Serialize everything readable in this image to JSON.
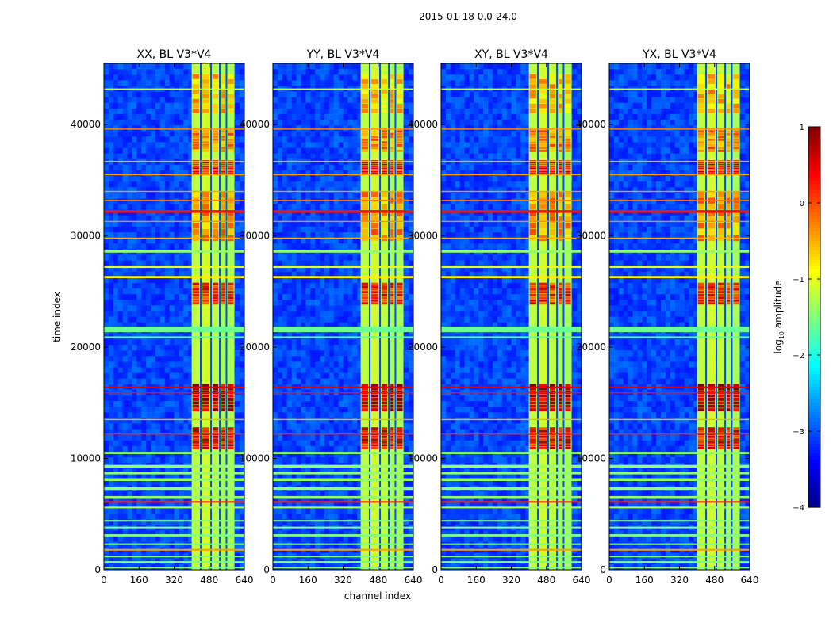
{
  "figure_title": "2015-01-18 0.0-24.0",
  "ylabel": "time index",
  "xlabel": "channel index",
  "colorbar": {
    "label_prefix": "log",
    "label_sub": "10",
    "label_suffix": " amplitude",
    "range": [
      -4,
      1
    ],
    "ticks": [
      1,
      0,
      -1,
      -2,
      -3,
      -4
    ],
    "tick_labels": [
      "1",
      "0",
      "−1",
      "−2",
      "−3",
      "−4"
    ],
    "colormap": "jet"
  },
  "chart_data": [
    {
      "type": "heatmap",
      "title": "XX, BL V3*V4",
      "xlim": [
        0,
        640
      ],
      "ylim": [
        0,
        45500
      ],
      "xticks": [
        0,
        160,
        320,
        480,
        640
      ],
      "yticks": [
        0,
        10000,
        20000,
        30000,
        40000
      ],
      "xtick_labels": [
        "0",
        "160",
        "320",
        "480",
        "640"
      ],
      "ytick_labels": [
        "0",
        "10000",
        "20000",
        "30000",
        "40000"
      ],
      "ytick_labels_shown": true,
      "xlabel_shown": false
    },
    {
      "type": "heatmap",
      "title": "YY, BL V3*V4",
      "xlim": [
        0,
        640
      ],
      "ylim": [
        0,
        45500
      ],
      "xticks": [
        0,
        160,
        320,
        480,
        640
      ],
      "yticks": [
        0,
        10000,
        20000,
        30000,
        40000
      ],
      "xtick_labels": [
        "0",
        "160",
        "320",
        "480",
        "640"
      ],
      "ytick_labels": [
        "0",
        "10000",
        "20000",
        "30000",
        "40000"
      ],
      "ytick_labels_shown": true,
      "xlabel_shown": true
    },
    {
      "type": "heatmap",
      "title": "XY, BL V3*V4",
      "xlim": [
        0,
        640
      ],
      "ylim": [
        0,
        45500
      ],
      "xticks": [
        0,
        160,
        320,
        480,
        640
      ],
      "yticks": [
        0,
        10000,
        20000,
        30000,
        40000
      ],
      "xtick_labels": [
        "0",
        "160",
        "320",
        "480",
        "640"
      ],
      "ytick_labels": [
        "0",
        "10000",
        "20000",
        "30000",
        "40000"
      ],
      "ytick_labels_shown": true,
      "xlabel_shown": false
    },
    {
      "type": "heatmap",
      "title": "YX, BL V3*V4",
      "xlim": [
        0,
        640
      ],
      "ylim": [
        0,
        45500
      ],
      "xticks": [
        0,
        160,
        320,
        480,
        640
      ],
      "yticks": [
        0,
        10000,
        20000,
        30000,
        40000
      ],
      "xtick_labels": [
        "0",
        "160",
        "320",
        "480",
        "640"
      ],
      "ytick_labels": [
        "0",
        "10000",
        "20000",
        "30000",
        "40000"
      ],
      "ytick_labels_shown": true,
      "xlabel_shown": false
    }
  ],
  "features": {
    "band_channels": [
      {
        "start": 400,
        "end": 438,
        "peak": -1.2
      },
      {
        "start": 438,
        "end": 445,
        "peak": -3.0
      },
      {
        "start": 445,
        "end": 485,
        "peak": -1.1
      },
      {
        "start": 485,
        "end": 492,
        "peak": -3.0
      },
      {
        "start": 492,
        "end": 525,
        "peak": -1.2
      },
      {
        "start": 525,
        "end": 532,
        "peak": -3.0
      },
      {
        "start": 532,
        "end": 555,
        "peak": -1.3
      },
      {
        "start": 555,
        "end": 562,
        "peak": -3.0
      },
      {
        "start": 562,
        "end": 595,
        "peak": -1.3
      }
    ],
    "hot_intervals": [
      {
        "start": 14200,
        "end": 16700,
        "level": 0.7
      },
      {
        "start": 10800,
        "end": 12800,
        "level": 0.4
      },
      {
        "start": 23800,
        "end": 25800,
        "level": 0.2
      },
      {
        "start": 35500,
        "end": 36800,
        "level": 0.4
      },
      {
        "start": 29500,
        "end": 34000,
        "level": -0.4
      },
      {
        "start": 37500,
        "end": 39500,
        "level": -0.3
      },
      {
        "start": 41000,
        "end": 44500,
        "level": -0.6
      }
    ],
    "flag_rows": [
      {
        "t": 21600,
        "thick": 500,
        "level": -1.6
      },
      {
        "t": 20900,
        "thick": 150,
        "level": -1.7
      },
      {
        "t": 16400,
        "thick": 150,
        "level": 0.5
      },
      {
        "t": 15900,
        "thick": 100,
        "level": 0.3
      },
      {
        "t": 13500,
        "thick": 100,
        "level": -0.5
      },
      {
        "t": 12200,
        "thick": 100,
        "level": 0.2
      },
      {
        "t": 10500,
        "thick": 200,
        "level": -1.4
      },
      {
        "t": 9300,
        "thick": 250,
        "level": -1.4
      },
      {
        "t": 8700,
        "thick": 250,
        "level": -1.4
      },
      {
        "t": 8100,
        "thick": 250,
        "level": -1.4
      },
      {
        "t": 7300,
        "thick": 250,
        "level": -1.4
      },
      {
        "t": 6500,
        "thick": 250,
        "level": -1.4
      },
      {
        "t": 6100,
        "thick": 150,
        "level": 0.2
      },
      {
        "t": 5600,
        "thick": 150,
        "level": -1.3
      },
      {
        "t": 4400,
        "thick": 150,
        "level": -1.5
      },
      {
        "t": 3800,
        "thick": 150,
        "level": -1.5
      },
      {
        "t": 3100,
        "thick": 200,
        "level": -1.5
      },
      {
        "t": 2300,
        "thick": 150,
        "level": -1.5
      },
      {
        "t": 1800,
        "thick": 150,
        "level": -0.4
      },
      {
        "t": 1200,
        "thick": 150,
        "level": -1.5
      },
      {
        "t": 700,
        "thick": 150,
        "level": -1.5
      },
      {
        "t": 200,
        "thick": 150,
        "level": -1.5
      },
      {
        "t": 26300,
        "thick": 200,
        "level": -0.8
      },
      {
        "t": 27200,
        "thick": 150,
        "level": -1.0
      },
      {
        "t": 28600,
        "thick": 200,
        "level": -1.4
      },
      {
        "t": 29800,
        "thick": 100,
        "level": -0.5
      },
      {
        "t": 31300,
        "thick": 100,
        "level": -0.3
      },
      {
        "t": 32200,
        "thick": 250,
        "level": 0.3
      },
      {
        "t": 33200,
        "thick": 100,
        "level": -0.2
      },
      {
        "t": 34000,
        "thick": 100,
        "level": -0.4
      },
      {
        "t": 35500,
        "thick": 100,
        "level": -0.4
      },
      {
        "t": 36700,
        "thick": 100,
        "level": -0.5
      },
      {
        "t": 39600,
        "thick": 100,
        "level": -0.3
      },
      {
        "t": 43200,
        "thick": 100,
        "level": -1.2
      }
    ]
  }
}
